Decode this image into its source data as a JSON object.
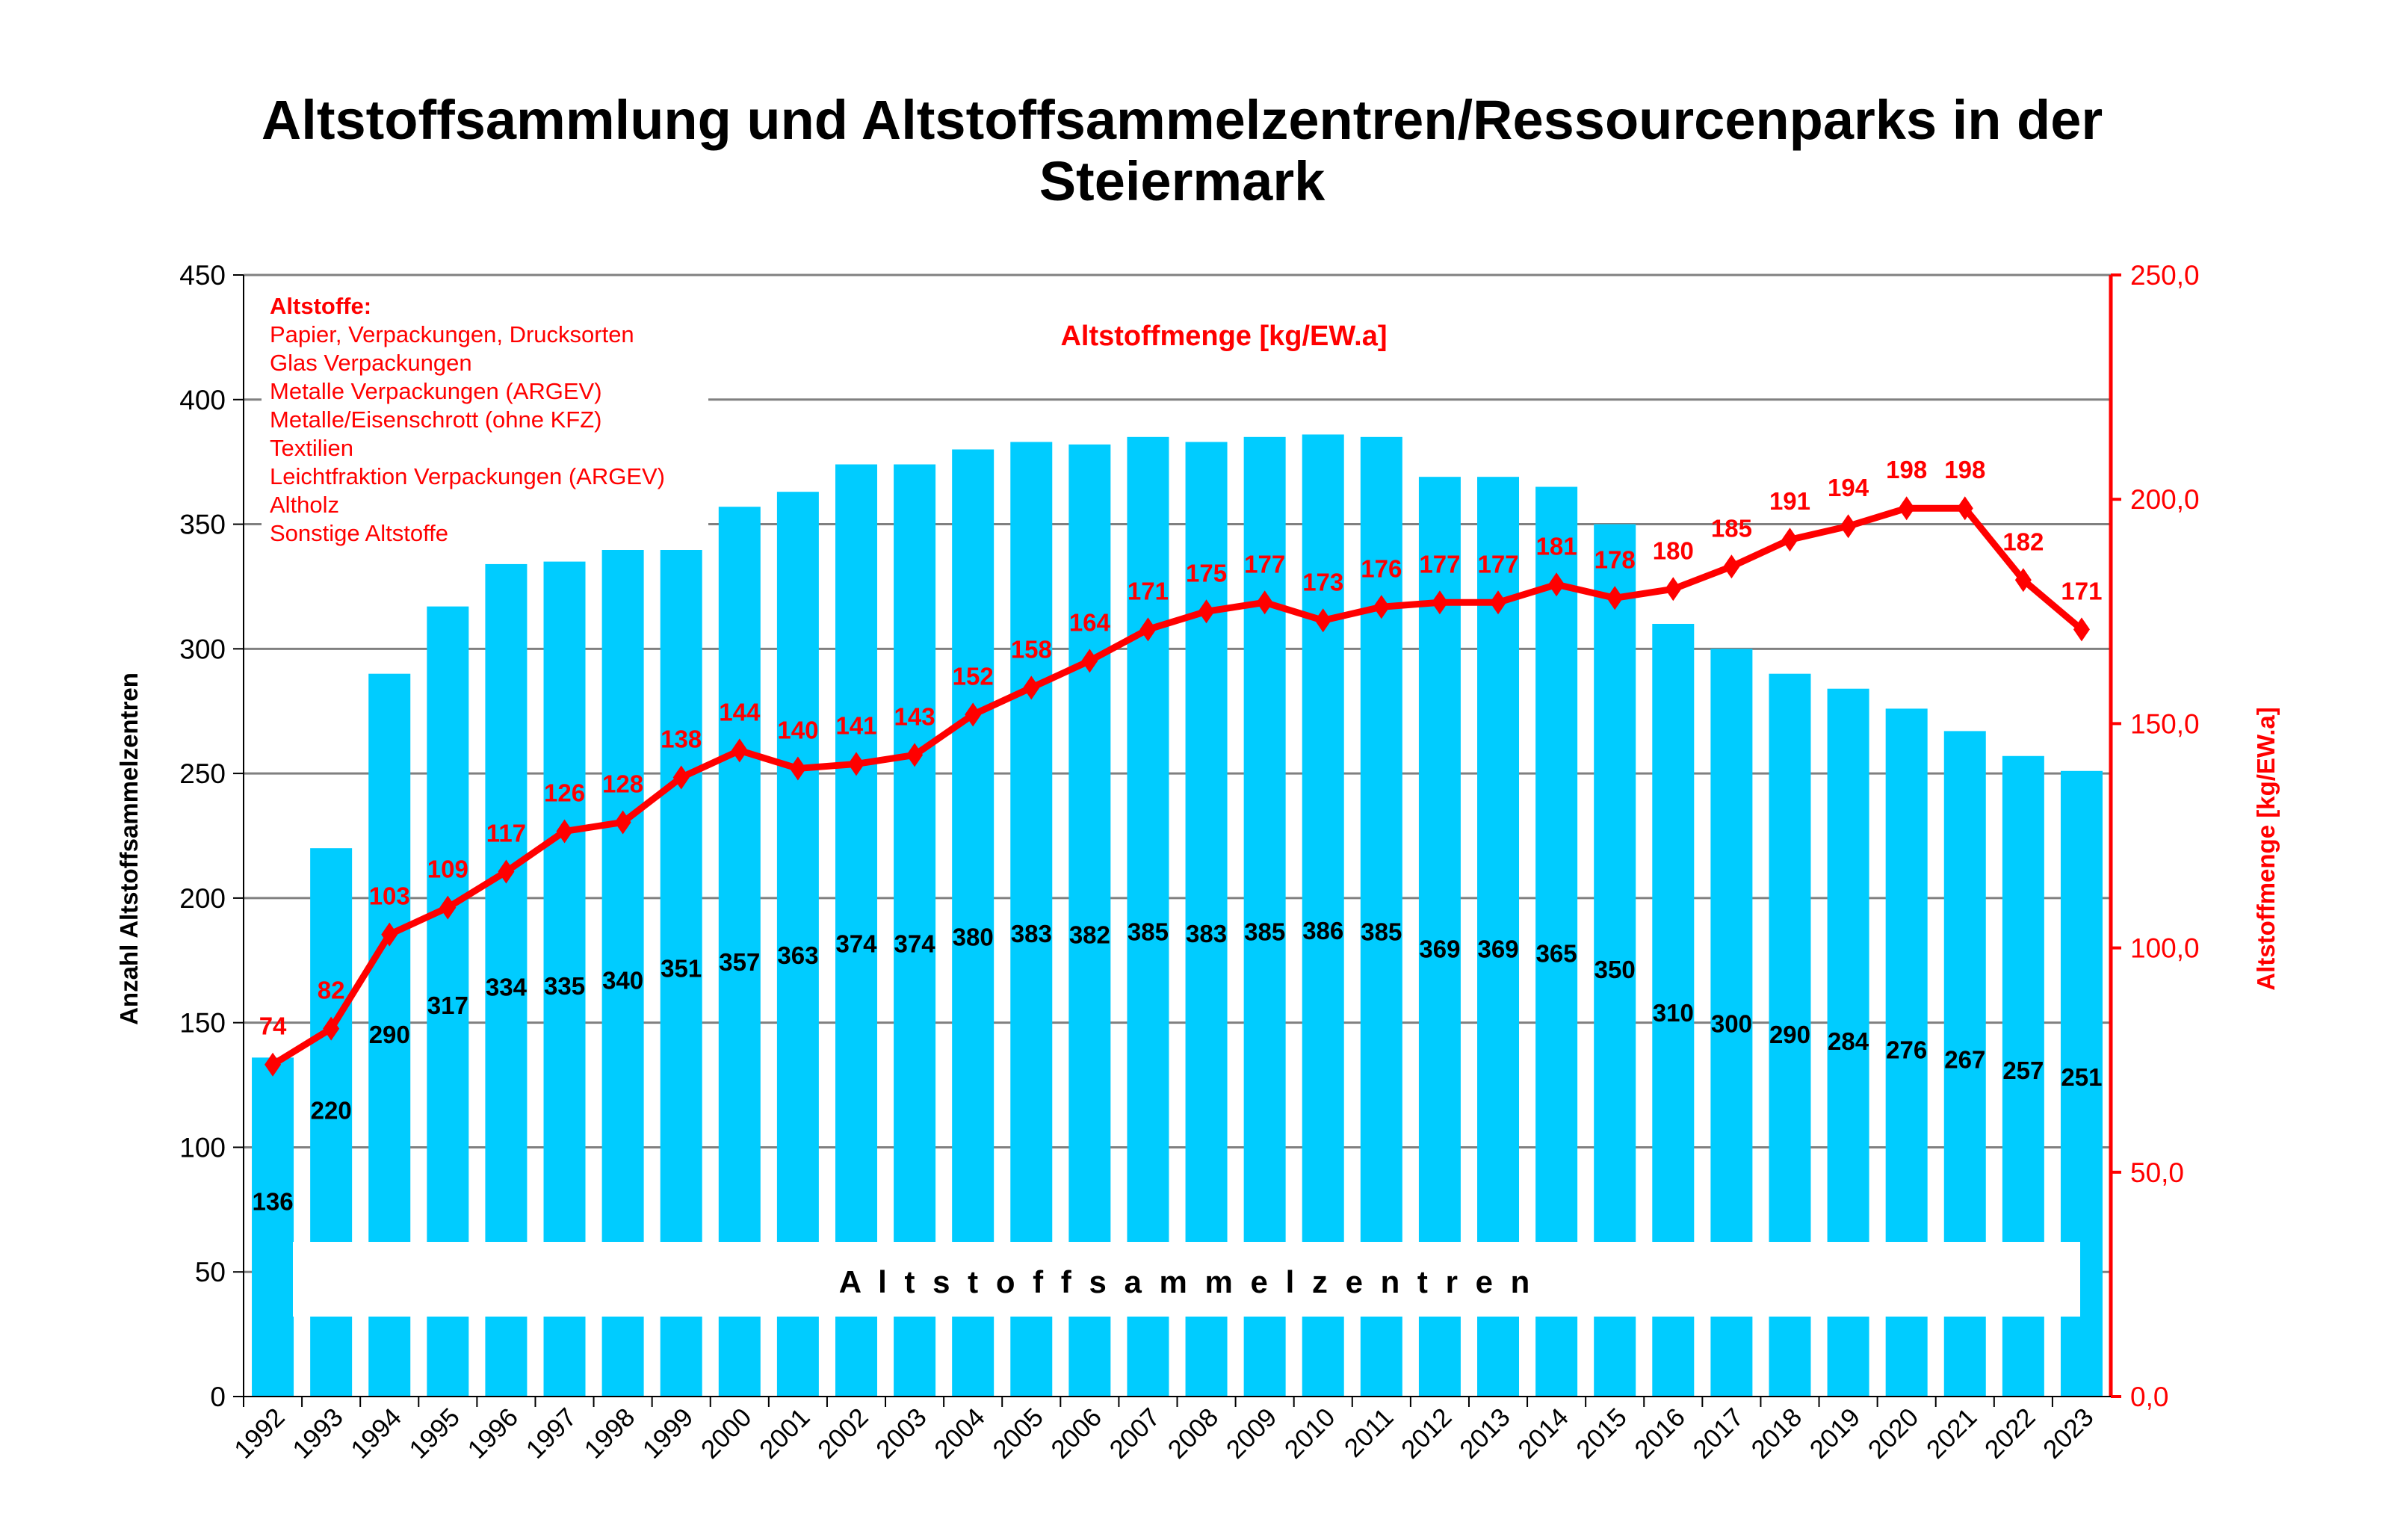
{
  "chart_data": {
    "type": "bar+line",
    "title_line1": "Altstoffsammlung und Altstoffsammelzentren/Ressourcenparks in der",
    "title_line2": "Steiermark",
    "line_title": "Altstoffmenge [kg/EW.a]",
    "ylabel_left": "Anzahl Altstoffsammelzentren",
    "ylabel_right": "Altstoffmenge [kg/EW.a]",
    "band_label": "A l t s t o f f s a m m e l z e n t r e n",
    "legend_box": {
      "heading": "Altstoffe:",
      "items": [
        "Papier, Verpackungen, Drucksorten",
        "Glas Verpackungen",
        "Metalle Verpackungen (ARGEV)",
        "Metalle/Eisenschrott (ohne KFZ)",
        "Textilien",
        "Leichtfraktion Verpackungen (ARGEV)",
        "Altholz",
        "Sonstige Altstoffe"
      ]
    },
    "categories": [
      "1992",
      "1993",
      "1994",
      "1995",
      "1996",
      "1997",
      "1998",
      "1999",
      "2000",
      "2001",
      "2002",
      "2003",
      "2004",
      "2005",
      "2006",
      "2007",
      "2008",
      "2009",
      "2010",
      "2011",
      "2012",
      "2013",
      "2014",
      "2015",
      "2016",
      "2017",
      "2018",
      "2019",
      "2020",
      "2021",
      "2022",
      "2023"
    ],
    "bars": {
      "axis": "left",
      "values": [
        136,
        220,
        290,
        317,
        334,
        335,
        340,
        351,
        357,
        363,
        374,
        374,
        380,
        383,
        382,
        385,
        383,
        385,
        386,
        385,
        369,
        369,
        365,
        350,
        310,
        300,
        290,
        284,
        276,
        267,
        257,
        251
      ]
    },
    "line": {
      "axis": "right",
      "values": [
        74,
        82,
        103,
        109,
        117,
        126,
        128,
        138,
        144,
        140,
        141,
        143,
        152,
        158,
        164,
        171,
        175,
        177,
        173,
        176,
        177,
        177,
        181,
        178,
        180,
        185,
        191,
        194,
        198,
        198,
        182,
        171
      ]
    },
    "ylim_left": [
      0,
      450
    ],
    "yticks_left": [
      "0",
      "50",
      "100",
      "150",
      "200",
      "250",
      "300",
      "350",
      "400",
      "450"
    ],
    "ylim_right": [
      0,
      250
    ],
    "yticks_right": [
      "0,0",
      "50,0",
      "100,0",
      "150,0",
      "200,0",
      "250,0"
    ],
    "grid": true,
    "colors": {
      "bar": "#00CCFF",
      "line": "#FF0000",
      "text": "#000000",
      "grid": "#808080"
    }
  }
}
